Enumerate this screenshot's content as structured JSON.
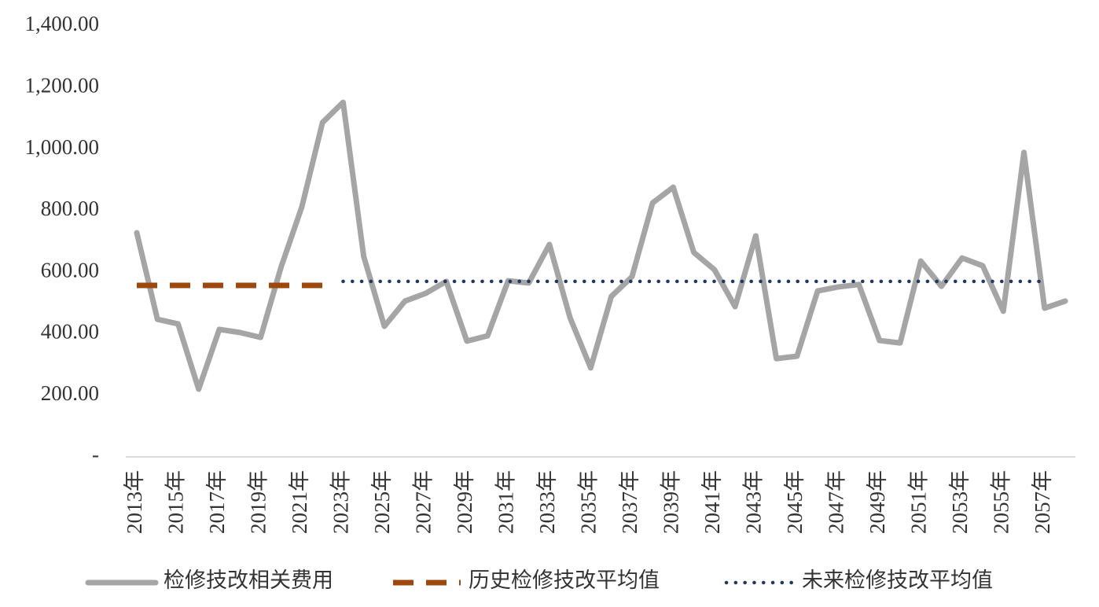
{
  "chart_data": {
    "type": "line",
    "categories": [
      "2013年",
      null,
      "2015年",
      null,
      "2017年",
      null,
      "2019年",
      null,
      "2021年",
      null,
      "2023年",
      null,
      "2025年",
      null,
      "2027年",
      null,
      "2029年",
      null,
      "2031年",
      null,
      "2033年",
      null,
      "2035年",
      null,
      "2037年",
      null,
      "2039年",
      null,
      "2041年",
      null,
      "2043年",
      null,
      "2045年",
      null,
      "2047年",
      null,
      "2049年",
      null,
      "2051年",
      null,
      "2053年",
      null,
      "2055年",
      null,
      "2057年",
      null
    ],
    "series": [
      {
        "name": "检修技改相关费用",
        "color": "#a5a5a5",
        "style": "solid",
        "values": [
          728,
          447,
          432,
          220,
          414,
          404,
          388,
          618,
          812,
          1086,
          1152,
          651,
          424,
          506,
          531,
          570,
          376,
          393,
          572,
          565,
          690,
          452,
          289,
          521,
          585,
          825,
          876,
          664,
          608,
          488,
          718,
          319,
          327,
          539,
          552,
          560,
          378,
          370,
          636,
          554,
          646,
          621,
          473,
          989,
          483,
          506
        ]
      },
      {
        "name": "历史检修技改平均值",
        "color": "#9e480e",
        "style": "dashed",
        "values": [
          557,
          557,
          557,
          557,
          557,
          557,
          557,
          557,
          557,
          557,
          null,
          null,
          null,
          null,
          null,
          null,
          null,
          null,
          null,
          null,
          null,
          null,
          null,
          null,
          null,
          null,
          null,
          null,
          null,
          null,
          null,
          null,
          null,
          null,
          null,
          null,
          null,
          null,
          null,
          null,
          null,
          null,
          null,
          null,
          null,
          null
        ]
      },
      {
        "name": "未来检修技改平均值",
        "color": "#203864",
        "style": "dotted",
        "values": [
          null,
          null,
          null,
          null,
          null,
          null,
          null,
          null,
          null,
          null,
          570,
          570,
          570,
          570,
          570,
          570,
          570,
          570,
          570,
          570,
          570,
          570,
          570,
          570,
          570,
          570,
          570,
          570,
          570,
          570,
          570,
          570,
          570,
          570,
          570,
          570,
          570,
          570,
          570,
          570,
          570,
          570,
          570,
          570,
          570,
          null
        ]
      }
    ],
    "ylim": [
      0,
      1400
    ],
    "yticks": [
      {
        "value": 0,
        "label": "-"
      },
      {
        "value": 200,
        "label": "200.00"
      },
      {
        "value": 400,
        "label": "400.00"
      },
      {
        "value": 600,
        "label": "600.00"
      },
      {
        "value": 800,
        "label": "800.00"
      },
      {
        "value": 1000,
        "label": "1,000.00"
      },
      {
        "value": 1200,
        "label": "1,200.00"
      },
      {
        "value": 1400,
        "label": "1,400.00"
      }
    ],
    "grid": false,
    "legend": "bottom"
  }
}
